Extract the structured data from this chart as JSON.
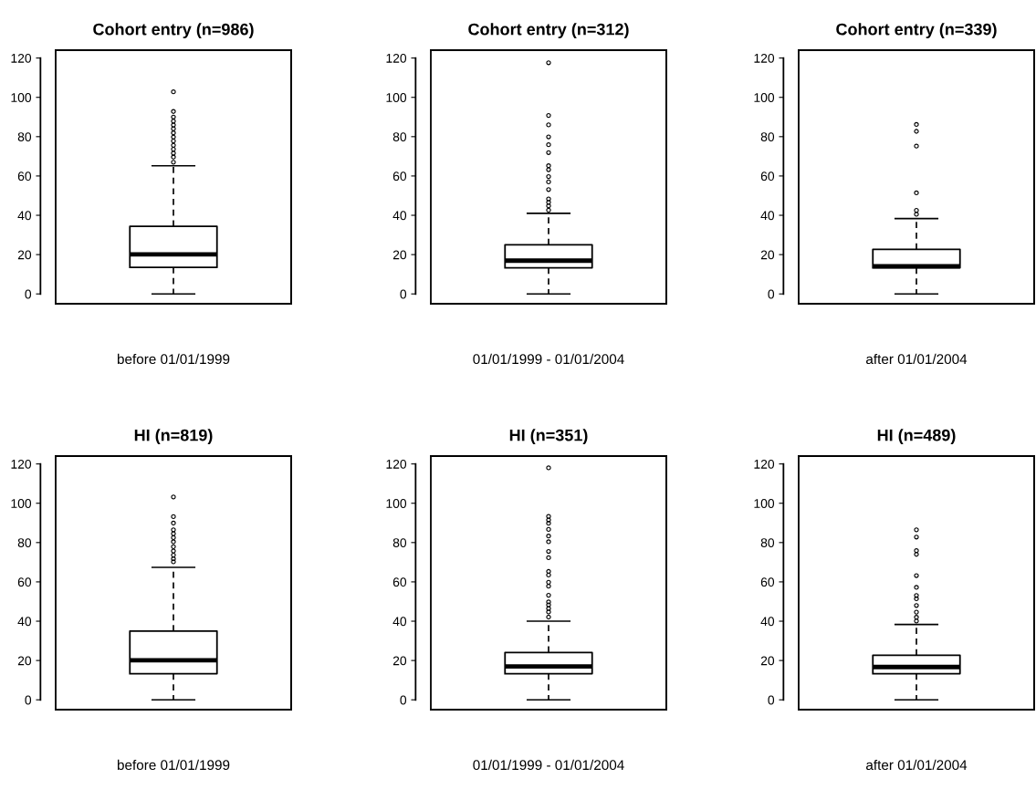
{
  "chart_data": [
    {
      "type": "box",
      "title": "Cohort entry (n=986)",
      "xlabel": "before 01/01/1999",
      "categories": [
        null
      ],
      "ylim": [
        -5,
        124
      ],
      "yticks": [
        0,
        20,
        40,
        60,
        80,
        100,
        120
      ],
      "tick_labels": "y",
      "grid": false,
      "boxes": [
        {
          "low": 0,
          "q1": 13.5,
          "median": 20.1,
          "q3": 34.4,
          "high": 65.2,
          "outliers": [
            67,
            69.6,
            71.6,
            73.6,
            75.6,
            77.8,
            79.8,
            81.9,
            84,
            85.9,
            87.9,
            90,
            92.8,
            102.8
          ]
        }
      ]
    },
    {
      "type": "box",
      "title": "Cohort entry (n=312)",
      "xlabel": "01/01/1999 - 01/01/2004",
      "categories": [
        null
      ],
      "ylim": [
        -5,
        124
      ],
      "yticks": [
        0,
        20,
        40,
        60,
        80,
        100,
        120
      ],
      "tick_labels": "y",
      "grid": false,
      "boxes": [
        {
          "low": 0,
          "q1": 13.3,
          "median": 16.9,
          "q3": 25,
          "high": 41,
          "outliers": [
            42.6,
            44.8,
            46.6,
            48.3,
            53.1,
            57,
            59.7,
            63.2,
            65.2,
            71.9,
            75.9,
            79.9,
            86,
            90.8,
            117.6
          ]
        }
      ]
    },
    {
      "type": "box",
      "title": "Cohort entry (n=339)",
      "xlabel": "after 01/01/2004",
      "categories": [
        null
      ],
      "ylim": [
        -5,
        124
      ],
      "yticks": [
        0,
        20,
        40,
        60,
        80,
        100,
        120
      ],
      "tick_labels": "y",
      "grid": false,
      "boxes": [
        {
          "low": 0,
          "q1": 13.3,
          "median": 14.1,
          "q3": 22.7,
          "high": 38.3,
          "outliers": [
            40.5,
            42.5,
            51.4,
            75.2,
            82.7,
            86.2
          ]
        }
      ]
    },
    {
      "type": "box",
      "title": "HI (n=819)",
      "xlabel": "before 01/01/1999",
      "categories": [
        null
      ],
      "ylim": [
        -5,
        124
      ],
      "yticks": [
        0,
        20,
        40,
        60,
        80,
        100,
        120
      ],
      "tick_labels": "y",
      "grid": false,
      "boxes": [
        {
          "low": 0,
          "q1": 13.3,
          "median": 20.1,
          "q3": 35,
          "high": 67.4,
          "outliers": [
            70.2,
            71.7,
            73.6,
            75.7,
            77.9,
            80.4,
            82.5,
            84.5,
            86.5,
            89.9,
            93.2,
            103.2
          ]
        }
      ]
    },
    {
      "type": "box",
      "title": "HI (n=351)",
      "xlabel": "01/01/1999 - 01/01/2004",
      "categories": [
        null
      ],
      "ylim": [
        -5,
        124
      ],
      "yticks": [
        0,
        20,
        40,
        60,
        80,
        100,
        120
      ],
      "tick_labels": "y",
      "grid": false,
      "boxes": [
        {
          "low": 0,
          "q1": 13.3,
          "median": 17,
          "q3": 24.1,
          "high": 40,
          "outliers": [
            42.1,
            44.7,
            46.4,
            48.3,
            49.8,
            53.2,
            57.8,
            59.8,
            63.5,
            65.3,
            72.3,
            75.5,
            80.4,
            83.3,
            86.7,
            89.8,
            91.5,
            93.3,
            118
          ]
        }
      ]
    },
    {
      "type": "box",
      "title": "HI (n=489)",
      "xlabel": "after 01/01/2004",
      "categories": [
        null
      ],
      "ylim": [
        -5,
        124
      ],
      "yticks": [
        0,
        20,
        40,
        60,
        80,
        100,
        120
      ],
      "tick_labels": "y",
      "grid": false,
      "boxes": [
        {
          "low": 0,
          "q1": 13.3,
          "median": 16.7,
          "q3": 22.7,
          "high": 38.3,
          "outliers": [
            40.1,
            42,
            44.6,
            48,
            51.4,
            53.1,
            57.2,
            63.2,
            74,
            75.9,
            82.8,
            86.5
          ]
        }
      ]
    }
  ]
}
